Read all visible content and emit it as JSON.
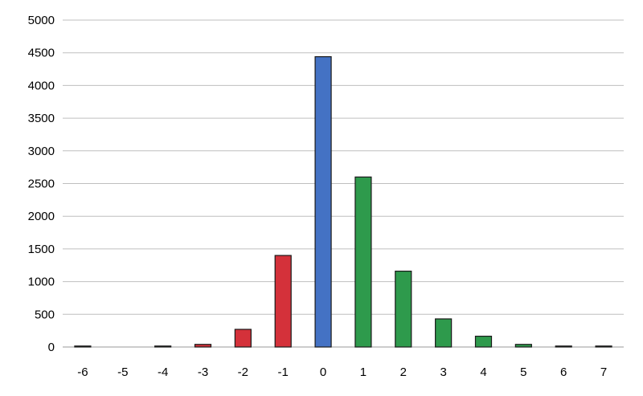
{
  "chart_data": {
    "type": "bar",
    "title": "",
    "xlabel": "",
    "ylabel": "",
    "categories": [
      "-6",
      "-5",
      "-4",
      "-3",
      "-2",
      "-1",
      "0",
      "1",
      "2",
      "3",
      "4",
      "5",
      "6",
      "7"
    ],
    "values": [
      15,
      0,
      15,
      40,
      270,
      1400,
      4440,
      2600,
      1160,
      430,
      165,
      40,
      15,
      15
    ],
    "bar_colors": [
      "#2e9a4c",
      "#2e9a4c",
      "#2e9a4c",
      "#d4313a",
      "#d4313a",
      "#d4313a",
      "#4472c4",
      "#2e9a4c",
      "#2e9a4c",
      "#2e9a4c",
      "#2e9a4c",
      "#2e9a4c",
      "#2e9a4c",
      "#2e9a4c"
    ],
    "ylim": [
      0,
      5000
    ],
    "yticks": [
      0,
      500,
      1000,
      1500,
      2000,
      2500,
      3000,
      3500,
      4000,
      4500,
      5000
    ],
    "grid": true,
    "legend": "none"
  }
}
